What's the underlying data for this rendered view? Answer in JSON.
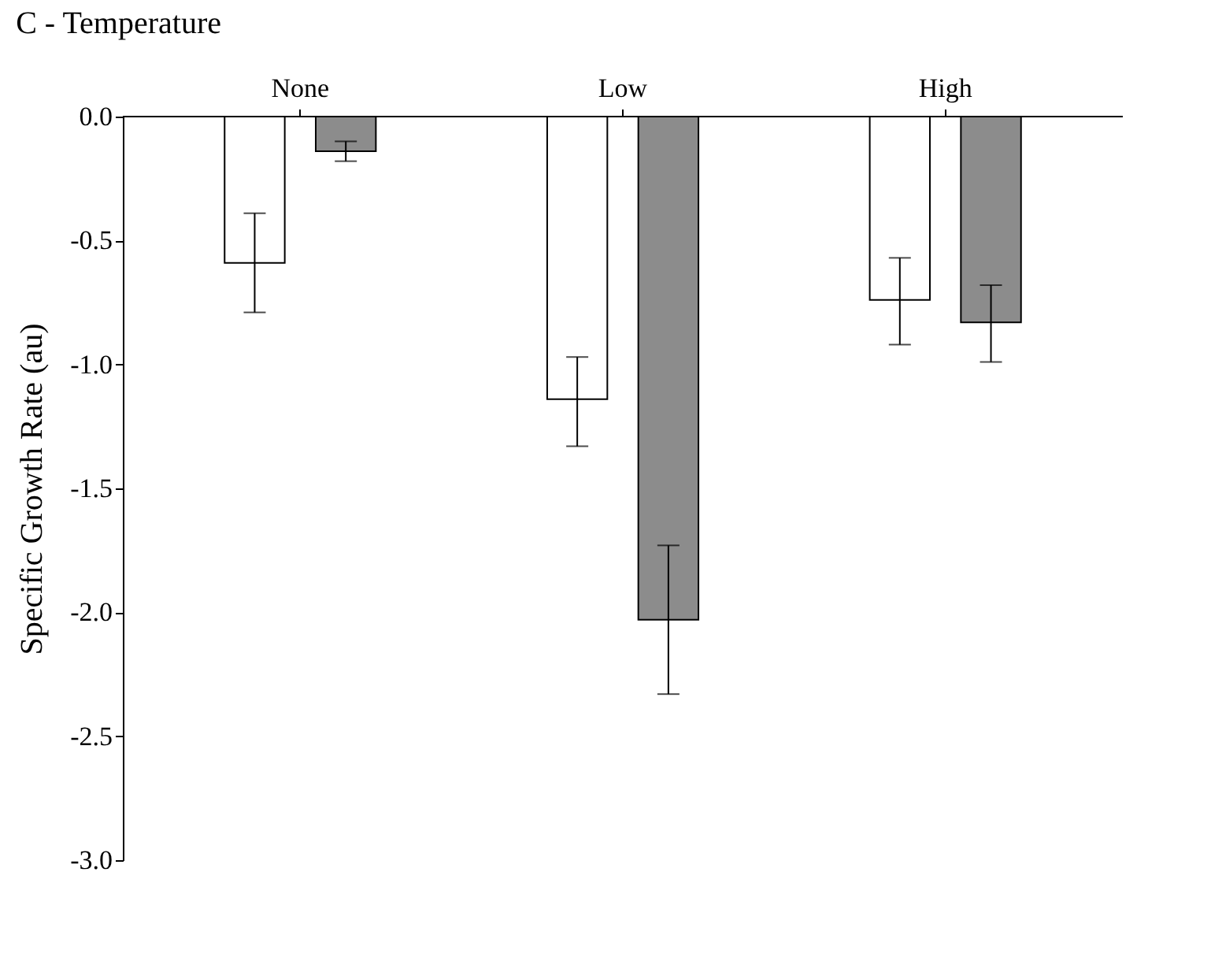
{
  "chart_data": {
    "type": "bar",
    "title": "C - Temperature",
    "ylabel": "Specific Growth Rate (au)",
    "categories": [
      "None",
      "Low",
      "High"
    ],
    "series": [
      {
        "color": "#ffffff",
        "values": [
          -0.59,
          -1.14,
          -0.74
        ],
        "errors": [
          [
            -0.79,
            -0.39
          ],
          [
            -1.33,
            -0.97
          ],
          [
            -0.92,
            -0.57
          ]
        ]
      },
      {
        "color": "#8c8c8c",
        "values": [
          -0.14,
          -2.03,
          -0.83
        ],
        "errors": [
          [
            -0.18,
            -0.1
          ],
          [
            -2.33,
            -1.73
          ],
          [
            -0.99,
            -0.68
          ]
        ]
      }
    ],
    "ylim": [
      -3.0,
      0.0
    ],
    "yticks": [
      {
        "value": -3,
        "label": "-3.0"
      },
      {
        "value": -2.5,
        "label": "-2.5"
      },
      {
        "value": -2,
        "label": "-2.0"
      },
      {
        "value": -1.5,
        "label": "-1.5"
      },
      {
        "value": -1,
        "label": "-1.0"
      },
      {
        "value": -0.5,
        "label": "-0.5"
      },
      {
        "value": 0,
        "label": "0.0"
      }
    ],
    "grid": false,
    "legend": false
  }
}
